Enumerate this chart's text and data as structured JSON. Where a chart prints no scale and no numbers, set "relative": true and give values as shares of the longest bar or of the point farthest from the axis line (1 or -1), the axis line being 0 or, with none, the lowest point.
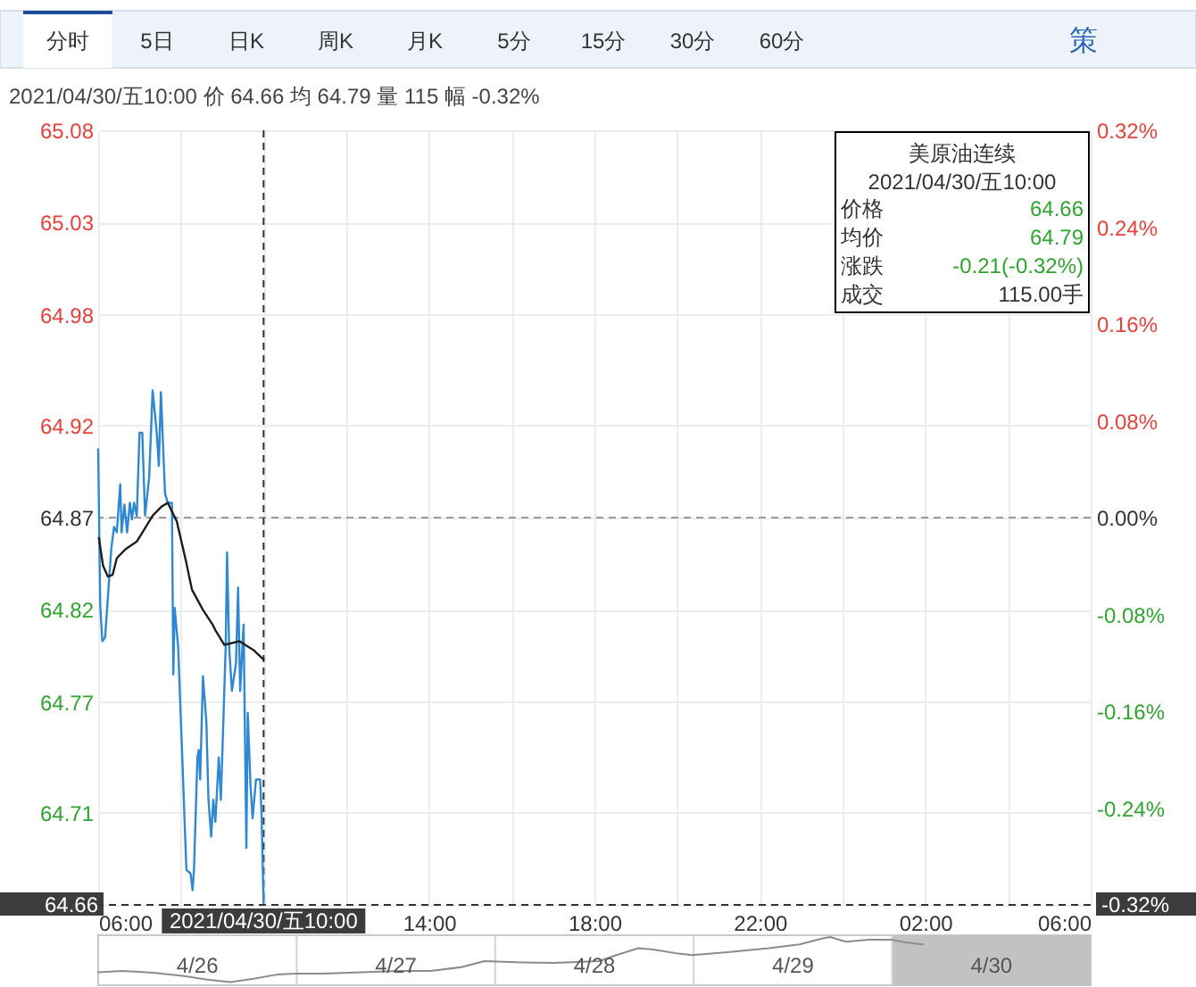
{
  "chart_data": [
    {
      "type": "other",
      "annotations": [
        "分时",
        "5日",
        "日K",
        "周K",
        "月K",
        "5分",
        "15分",
        "30分",
        "60分",
        "策"
      ]
    },
    {
      "type": "line",
      "subtitle": "2021/04/30/五10:00 价 64.66 均 64.79 量 115 幅 -0.32%",
      "series": [
        {
          "color": "#2f88d4",
          "x": [
            "2021-04-30T06:00",
            "2021-04-30T06:03",
            "2021-04-30T06:06",
            "2021-04-30T06:10",
            "2021-04-30T06:19",
            "2021-04-30T06:23",
            "2021-04-30T06:27",
            "2021-04-30T06:32",
            "2021-04-30T06:34",
            "2021-04-30T06:38",
            "2021-04-30T06:42",
            "2021-04-30T06:46",
            "2021-04-30T06:49",
            "2021-04-30T06:52",
            "2021-04-30T06:56",
            "2021-04-30T07:00",
            "2021-04-30T07:04",
            "2021-04-30T07:08",
            "2021-04-30T07:14",
            "2021-04-30T07:19",
            "2021-04-30T07:25",
            "2021-04-30T07:28",
            "2021-04-30T07:31",
            "2021-04-30T07:37",
            "2021-04-30T07:41",
            "2021-04-30T07:47",
            "2021-04-30T07:49",
            "2021-04-30T07:51",
            "2021-04-30T07:56",
            "2021-04-30T08:02",
            "2021-04-30T08:08",
            "2021-04-30T08:14",
            "2021-04-30T08:17",
            "2021-04-30T08:19",
            "2021-04-30T08:24",
            "2021-04-30T08:26",
            "2021-04-30T08:28",
            "2021-04-30T08:32",
            "2021-04-30T08:37",
            "2021-04-30T08:40",
            "2021-04-30T08:44",
            "2021-04-30T08:47",
            "2021-04-30T08:50",
            "2021-04-30T08:55",
            "2021-04-30T08:58",
            "2021-04-30T09:05",
            "2021-04-30T09:07",
            "2021-04-30T09:10",
            "2021-04-30T09:14",
            "2021-04-30T09:20",
            "2021-04-30T09:23",
            "2021-04-30T09:26",
            "2021-04-30T09:31",
            "2021-04-30T09:35",
            "2021-04-30T09:37",
            "2021-04-30T09:41",
            "2021-04-30T09:44",
            "2021-04-30T09:49",
            "2021-04-30T09:55",
            "2021-04-30T09:57",
            "2021-04-30T10:00"
          ],
          "values": [
            64.907,
            64.822,
            64.803,
            64.805,
            64.853,
            64.865,
            64.862,
            64.888,
            64.862,
            64.877,
            64.862,
            64.878,
            64.869,
            64.878,
            64.871,
            64.916,
            64.916,
            64.871,
            64.892,
            64.939,
            64.916,
            64.898,
            64.938,
            64.883,
            64.878,
            64.878,
            64.785,
            64.821,
            64.8,
            64.74,
            64.679,
            64.677,
            64.668,
            64.679,
            64.74,
            64.744,
            64.728,
            64.784,
            64.759,
            64.717,
            64.697,
            64.717,
            64.705,
            64.74,
            64.717,
            64.8,
            64.851,
            64.8,
            64.776,
            64.791,
            64.832,
            64.776,
            64.812,
            64.691,
            64.764,
            64.725,
            64.707,
            64.728,
            64.728,
            64.71,
            64.66
          ]
        },
        {
          "color": "#1e1e1e",
          "x": [
            "2021-04-30T06:01",
            "2021-04-30T06:07",
            "2021-04-30T06:14",
            "2021-04-30T06:21",
            "2021-04-30T06:27",
            "2021-04-30T06:40",
            "2021-04-30T06:56",
            "2021-04-30T07:06",
            "2021-04-30T07:19",
            "2021-04-30T07:32",
            "2021-04-30T07:41",
            "2021-04-30T07:54",
            "2021-04-30T08:07",
            "2021-04-30T08:16",
            "2021-04-30T08:32",
            "2021-04-30T08:46",
            "2021-04-30T08:50",
            "2021-04-30T09:03",
            "2021-04-30T09:25",
            "2021-04-30T09:33",
            "2021-04-30T09:46",
            "2021-04-30T10:00"
          ],
          "values": [
            64.859,
            64.844,
            64.838,
            64.839,
            64.848,
            64.853,
            64.857,
            64.863,
            64.871,
            64.876,
            64.878,
            64.868,
            64.847,
            64.831,
            64.82,
            64.812,
            64.809,
            64.801,
            64.803,
            64.801,
            64.798,
            64.793
          ]
        }
      ],
      "xlim": [
        "2021-04-30T06:00",
        "2021-05-01T06:00"
      ],
      "xticks": [
        {
          "value": "2021-04-30T06:00",
          "label": "06:00"
        },
        {
          "value": "2021-04-30T08:00",
          "label": null
        },
        {
          "value": "2021-04-30T10:00",
          "label": null
        },
        {
          "value": "2021-04-30T12:00",
          "label": null
        },
        {
          "value": "2021-04-30T14:00",
          "label": "14:00"
        },
        {
          "value": "2021-04-30T16:00",
          "label": null
        },
        {
          "value": "2021-04-30T18:00",
          "label": "18:00"
        },
        {
          "value": "2021-04-30T20:00",
          "label": null
        },
        {
          "value": "2021-04-30T22:00",
          "label": "22:00"
        },
        {
          "value": "2021-05-01T00:00",
          "label": null
        },
        {
          "value": "2021-05-01T02:00",
          "label": "02:00"
        },
        {
          "value": "2021-05-01T04:00",
          "label": null
        },
        {
          "value": "2021-05-01T06:00",
          "label": "06:00"
        }
      ],
      "ylim": [
        64.66,
        65.08
      ],
      "yticks": [
        {
          "value": 64.66,
          "label": null
        },
        64.71,
        64.77,
        64.82,
        64.87,
        64.92,
        64.98,
        65.03,
        65.08
      ],
      "y2lim": [
        -0.32,
        0.32
      ],
      "y2ticks": [
        {
          "value": -0.32,
          "label": null
        },
        {
          "value": -0.24,
          "label": "-0.24%"
        },
        {
          "value": -0.16,
          "label": "-0.16%"
        },
        {
          "value": -0.08,
          "label": "-0.08%"
        },
        {
          "value": 0,
          "label": "0.00%"
        },
        {
          "value": 0.08,
          "label": "0.08%"
        },
        {
          "value": 0.16,
          "label": "0.16%"
        },
        {
          "value": 0.24,
          "label": "0.24%"
        },
        {
          "value": 0.32,
          "label": "0.32%"
        }
      ],
      "grid": true,
      "ref_lines": [
        {
          "axis": "y",
          "value": 64.87,
          "color": "#999999",
          "line_style": "dashed"
        },
        {
          "axis": "x",
          "value": "2021-04-30T10:00",
          "label": "2021/04/30/五10:00",
          "color": "#333333",
          "line_style": "dashed"
        },
        {
          "axis": "y2",
          "value": -0.32,
          "label": "-0.32%",
          "color": "#333333",
          "line_style": "dashed"
        }
      ],
      "annotations": [
        "美原油连续",
        "2021/04/30/五10:00",
        "价格",
        "64.66",
        "均价",
        "64.79",
        "涨跌",
        "-0.21(-0.32%)",
        "成交",
        "115.00手",
        {
          "text": "64.66",
          "x": "2021-04-30T06:00",
          "y": 64.66
        }
      ]
    },
    {
      "type": "line",
      "relative": true,
      "color": "#8c8c8c",
      "x": [
        "2021-04-26T06:00",
        "2021-04-26T09:00",
        "2021-04-26T12:42",
        "2021-04-26T16:24",
        "2021-04-26T19:12",
        "2021-04-26T22:00",
        "2021-04-27T00:48",
        "2021-04-27T03:36",
        "2021-04-27T05:54",
        "2021-04-27T09:12",
        "2021-04-27T13:48",
        "2021-04-27T18:30",
        "2021-04-27T22:12",
        "2021-04-28T01:54",
        "2021-04-28T04:42",
        "2021-04-28T09:18",
        "2021-04-28T13:06",
        "2021-04-28T18:36",
        "2021-04-28T20:30",
        "2021-04-28T23:18",
        "2021-04-29T01:06",
        "2021-04-29T03:54",
        "2021-04-29T05:48",
        "2021-04-29T10:24",
        "2021-04-29T15:06",
        "2021-04-29T18:48",
        "2021-04-29T21:36",
        "2021-04-29T22:30",
        "2021-04-30T00:24",
        "2021-04-30T03:12",
        "2021-04-30T06:00",
        "2021-04-30T07:24",
        "2021-04-30T09:42"
      ],
      "values": [
        0.24,
        0.27,
        0.23,
        0.16,
        0.08,
        0.03,
        0.1,
        0.19,
        0.21,
        0.21,
        0.24,
        0.27,
        0.27,
        0.35,
        0.48,
        0.45,
        0.44,
        0.48,
        0.6,
        0.76,
        0.73,
        0.65,
        0.61,
        0.68,
        0.76,
        0.84,
        0.97,
        1.0,
        0.9,
        0.94,
        0.94,
        0.89,
        0.84
      ],
      "xlim": [
        "2021-04-26T06:00",
        "2021-05-01T06:00"
      ],
      "xticks": [
        {
          "value": "2021-04-26T18:00",
          "label": "4/26"
        },
        {
          "value": "2021-04-27T18:00",
          "label": "4/27"
        },
        {
          "value": "2021-04-28T18:00",
          "label": "4/28"
        },
        {
          "value": "2021-04-29T18:00",
          "label": "4/29"
        },
        {
          "value": "2021-04-30T18:00",
          "label": "4/30"
        }
      ],
      "ref_lines": [
        {
          "axis": "x",
          "value": "2021-04-27T06:00",
          "color": "#d4d4d4"
        },
        {
          "axis": "x",
          "value": "2021-04-28T06:00",
          "color": "#d4d4d4"
        },
        {
          "axis": "x",
          "value": "2021-04-29T06:00",
          "color": "#d4d4d4"
        },
        {
          "axis": "x",
          "value": "2021-04-30T06:00",
          "color": "#d4d4d4"
        }
      ],
      "bands": [
        {
          "axis": "x",
          "from": "2021-04-30T06:00",
          "to": "2021-05-01T06:00",
          "color": "#c2c2c2"
        }
      ]
    }
  ]
}
